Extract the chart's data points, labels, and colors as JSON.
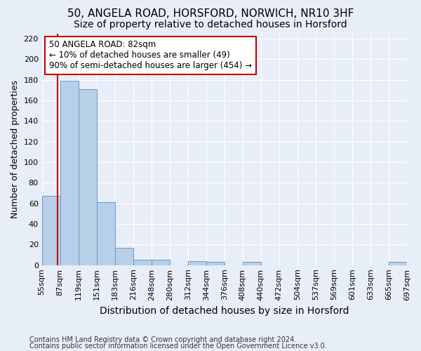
{
  "title1": "50, ANGELA ROAD, HORSFORD, NORWICH, NR10 3HF",
  "title2": "Size of property relative to detached houses in Horsford",
  "xlabel": "Distribution of detached houses by size in Horsford",
  "ylabel": "Number of detached properties",
  "footnote1": "Contains HM Land Registry data © Crown copyright and database right 2024.",
  "footnote2": "Contains public sector information licensed under the Open Government Licence v3.0.",
  "bin_labels": [
    "55sqm",
    "87sqm",
    "119sqm",
    "151sqm",
    "183sqm",
    "216sqm",
    "248sqm",
    "280sqm",
    "312sqm",
    "344sqm",
    "376sqm",
    "408sqm",
    "440sqm",
    "472sqm",
    "504sqm",
    "537sqm",
    "569sqm",
    "601sqm",
    "633sqm",
    "665sqm",
    "697sqm"
  ],
  "values": [
    67,
    179,
    171,
    61,
    17,
    5,
    5,
    0,
    4,
    3,
    0,
    3,
    0,
    0,
    0,
    0,
    0,
    0,
    0,
    3
  ],
  "bar_color": "#b8cfe8",
  "bar_edge_color": "#6699cc",
  "vline_color": "#cc0000",
  "vline_x": 0.344,
  "annotation_text": "50 ANGELA ROAD: 82sqm\n← 10% of detached houses are smaller (49)\n90% of semi-detached houses are larger (454) →",
  "annotation_box_color": "#ffffff",
  "annotation_box_edge": "#cc0000",
  "ylim": [
    0,
    225
  ],
  "yticks": [
    0,
    20,
    40,
    60,
    80,
    100,
    120,
    140,
    160,
    180,
    200,
    220
  ],
  "bg_color": "#e8eef8",
  "plot_bg_color": "#e8eef8",
  "grid_color": "#ffffff",
  "title1_fontsize": 11,
  "title2_fontsize": 10,
  "xlabel_fontsize": 10,
  "ylabel_fontsize": 9,
  "tick_fontsize": 8,
  "annotation_fontsize": 8.5,
  "footnote_fontsize": 7
}
